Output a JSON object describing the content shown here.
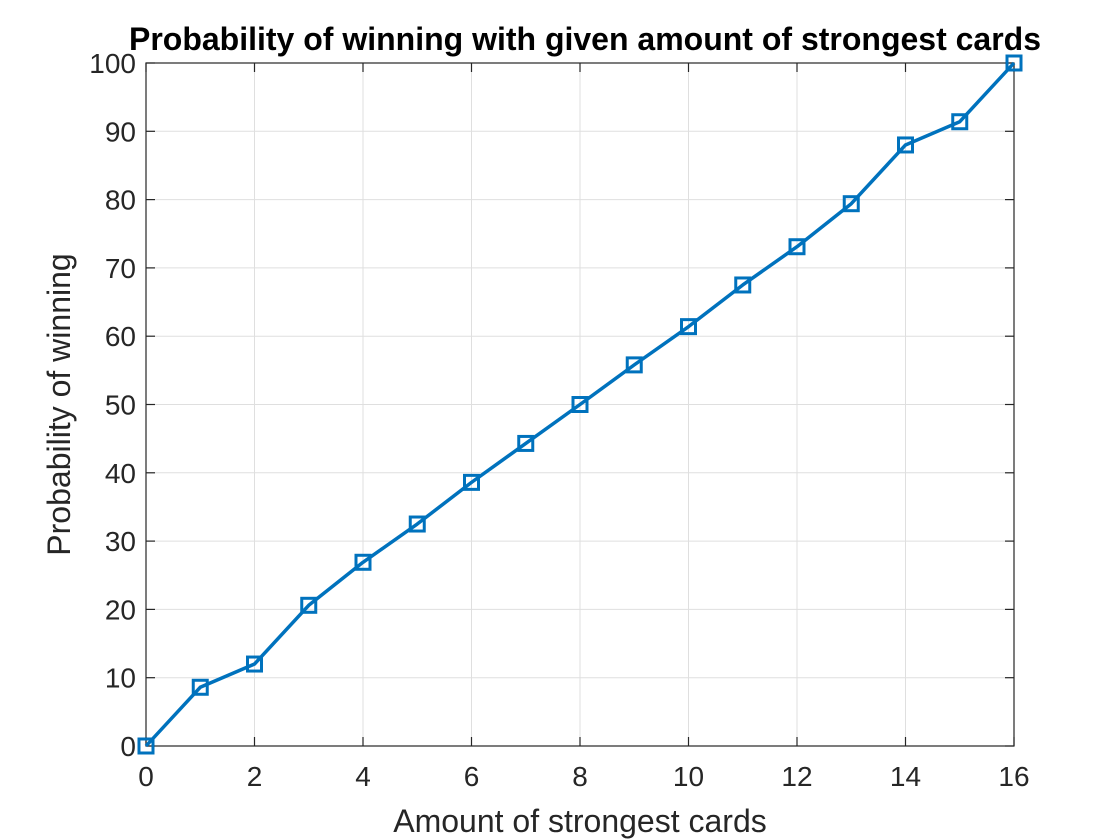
{
  "chart_data": {
    "type": "line",
    "title": "Probability of winning with given amount of strongest cards",
    "xlabel": "Amount of strongest cards",
    "ylabel": "Probability of winning",
    "xlim": [
      0,
      16
    ],
    "ylim": [
      0,
      100
    ],
    "xticks": [
      0,
      2,
      4,
      6,
      8,
      10,
      12,
      14,
      16
    ],
    "yticks": [
      0,
      10,
      20,
      30,
      40,
      50,
      60,
      70,
      80,
      90,
      100
    ],
    "grid": true,
    "marker": "square",
    "series": [
      {
        "color": "#0072BD",
        "x": [
          0,
          1,
          2,
          3,
          4,
          5,
          6,
          7,
          8,
          9,
          10,
          11,
          12,
          13,
          14,
          15,
          16
        ],
        "y": [
          0,
          8.6,
          12.0,
          20.6,
          26.9,
          32.5,
          38.6,
          44.3,
          50.0,
          55.8,
          61.4,
          67.5,
          73.1,
          79.4,
          88.0,
          91.4,
          100
        ]
      }
    ]
  }
}
